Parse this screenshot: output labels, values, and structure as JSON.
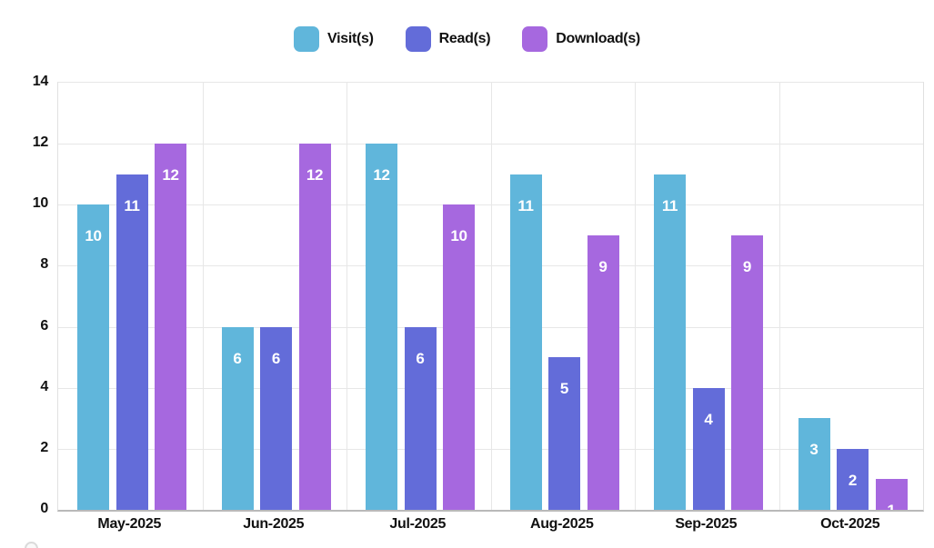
{
  "chart_data": {
    "type": "bar",
    "title": "",
    "categories": [
      "May-2025",
      "Jun-2025",
      "Jul-2025",
      "Aug-2025",
      "Sep-2025",
      "Oct-2025"
    ],
    "series": [
      {
        "name": "Visit(s)",
        "color": "#60b6db",
        "values": [
          10,
          6,
          12,
          11,
          11,
          3
        ]
      },
      {
        "name": "Read(s)",
        "color": "#636cd9",
        "values": [
          11,
          6,
          6,
          5,
          4,
          2
        ]
      },
      {
        "name": "Download(s)",
        "color": "#a668df",
        "values": [
          12,
          12,
          10,
          9,
          9,
          1
        ]
      }
    ],
    "ylim": [
      0,
      14
    ],
    "y_ticks": [
      0,
      2,
      4,
      6,
      8,
      10,
      12,
      14
    ],
    "grid": true,
    "legend_position": "top-center",
    "value_labels": "white, inside top of each bar",
    "xlabel": "",
    "ylabel": ""
  },
  "colors": {
    "background": "#ffffff",
    "gridline": "#e7e7e7",
    "axis_line": "#b9b9b9",
    "text": "#111111",
    "bar_value_text": "#ffffff"
  }
}
